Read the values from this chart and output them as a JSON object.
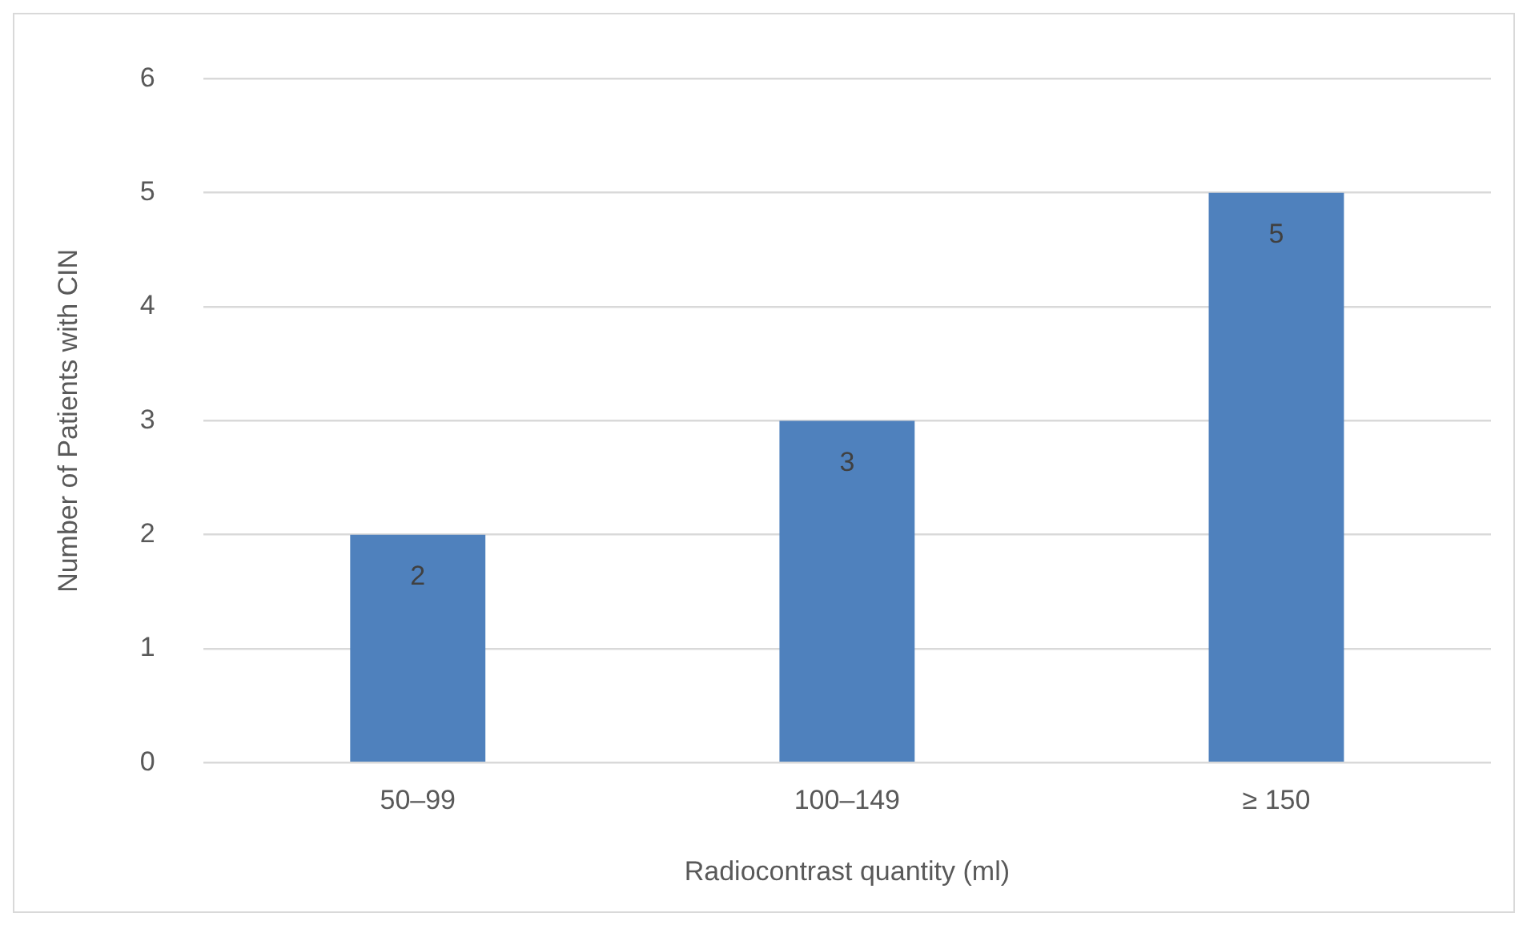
{
  "chart_data": {
    "type": "bar",
    "xlabel": "Radiocontrast quantity (ml)",
    "ylabel": "Number of Patients with CIN",
    "categories": [
      "50–99",
      "100–149",
      "≥ 150"
    ],
    "values": [
      2,
      3,
      5
    ],
    "color": "#4f81bd",
    "ylim": [
      0,
      6
    ],
    "yticks": [
      0,
      1,
      2,
      3,
      4,
      5,
      6
    ],
    "grid": "y",
    "data_labels": true,
    "legend": false
  }
}
